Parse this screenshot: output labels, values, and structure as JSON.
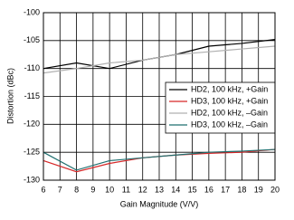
{
  "chart_data": {
    "type": "line",
    "x_label": "Gain Magnitude (V/V)",
    "y_label": "Distortion (dBc)",
    "x": [
      6,
      8,
      10,
      12,
      14,
      16,
      18,
      20
    ],
    "series": [
      {
        "name": "HD2, 100 kHz, +Gain",
        "color": "#000000",
        "values": [
          -110,
          -109,
          -110,
          -108.5,
          -107.5,
          -106,
          -105.5,
          -104.8
        ]
      },
      {
        "name": "HD3, 100 kHz, +Gain",
        "color": "#d62728",
        "values": [
          -126.5,
          -128.5,
          -127,
          -126,
          -125.5,
          -125.2,
          -125,
          -124.5
        ]
      },
      {
        "name": "HD2, 100 kHz, –Gain",
        "color": "#b0b0b0",
        "values": [
          -110.8,
          -110,
          -109,
          -108.5,
          -107.5,
          -107,
          -106.5,
          -106
        ]
      },
      {
        "name": "HD3, 100 kHz, –Gain",
        "color": "#1f6f6f",
        "values": [
          -125,
          -128.2,
          -126.5,
          -126,
          -125.5,
          -125,
          -124.8,
          -124.5
        ]
      }
    ],
    "xlim": [
      6,
      20
    ],
    "xticks": [
      6,
      7,
      8,
      9,
      10,
      11,
      12,
      13,
      14,
      15,
      16,
      17,
      18,
      19,
      20
    ],
    "ylim": [
      -130,
      -100
    ],
    "yticks": [
      -130,
      -125,
      -120,
      -115,
      -110,
      -105,
      -100
    ],
    "grid": true,
    "legend": "right"
  }
}
